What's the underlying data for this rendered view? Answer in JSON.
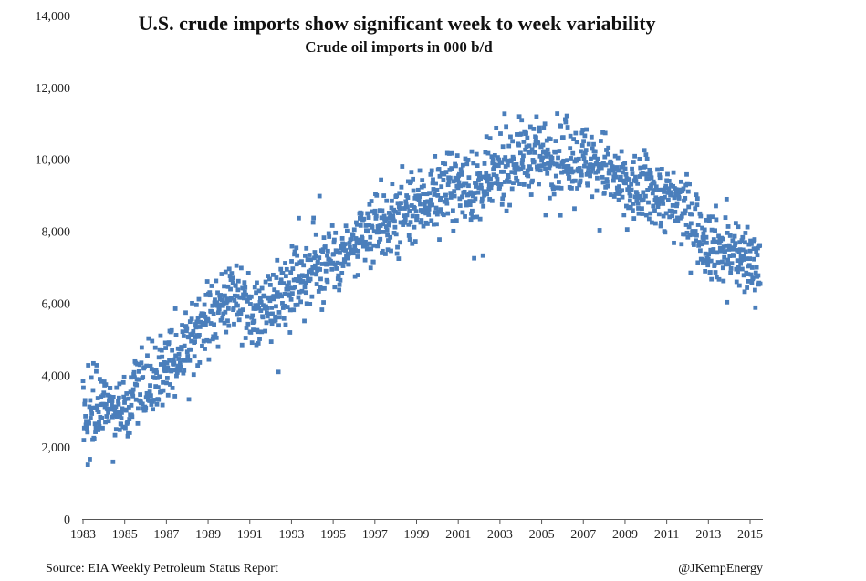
{
  "chart_data": {
    "type": "scatter",
    "title": "U.S. crude imports show significant week to week variability",
    "subtitle": "Crude oil imports in 000 b/d",
    "xlabel": "",
    "ylabel": "",
    "xlim": [
      1983,
      2015.5
    ],
    "ylim": [
      0,
      14000
    ],
    "x_ticks": [
      "1983",
      "1985",
      "1987",
      "1989",
      "1991",
      "1993",
      "1995",
      "1997",
      "1999",
      "2001",
      "2003",
      "2005",
      "2007",
      "2009",
      "2011",
      "2013",
      "2015"
    ],
    "y_ticks": [
      "0",
      "2,000",
      "4,000",
      "6,000",
      "8,000",
      "10,000",
      "12,000",
      "14,000"
    ],
    "grid": false,
    "marker_color": "#4a7ebb",
    "frequency": "weekly",
    "series": [
      {
        "trend": [
          [
            1983.0,
            2700
          ],
          [
            1984.0,
            3200
          ],
          [
            1985.0,
            3000
          ],
          [
            1986.0,
            3800
          ],
          [
            1987.0,
            4300
          ],
          [
            1988.0,
            4900
          ],
          [
            1989.0,
            5500
          ],
          [
            1990.0,
            6100
          ],
          [
            1991.0,
            5700
          ],
          [
            1992.0,
            6000
          ],
          [
            1993.0,
            6600
          ],
          [
            1994.0,
            7000
          ],
          [
            1995.0,
            7300
          ],
          [
            1996.0,
            7500
          ],
          [
            1997.0,
            8100
          ],
          [
            1998.0,
            8400
          ],
          [
            1999.0,
            8700
          ],
          [
            2000.0,
            9000
          ],
          [
            2001.0,
            9300
          ],
          [
            2002.0,
            9100
          ],
          [
            2003.0,
            9700
          ],
          [
            2004.0,
            10100
          ],
          [
            2005.0,
            10100
          ],
          [
            2006.0,
            10100
          ],
          [
            2007.0,
            10000
          ],
          [
            2008.0,
            9800
          ],
          [
            2009.0,
            9100
          ],
          [
            2010.0,
            9200
          ],
          [
            2011.0,
            8900
          ],
          [
            2012.0,
            8500
          ],
          [
            2013.0,
            7700
          ],
          [
            2014.0,
            7400
          ],
          [
            2015.0,
            7200
          ],
          [
            2015.5,
            7100
          ]
        ],
        "spread": 1150
      }
    ]
  },
  "footer": {
    "source": "Source: EIA Weekly Petroleum Status Report",
    "credit": "@JKempEnergy"
  }
}
